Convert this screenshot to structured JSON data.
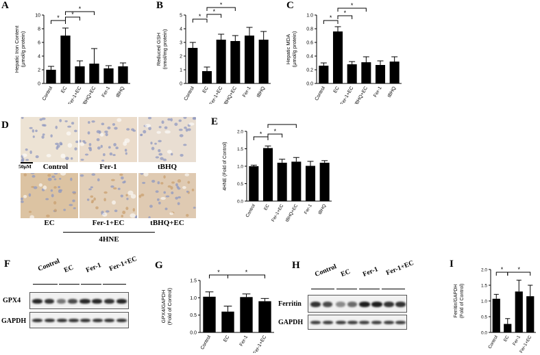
{
  "panels": {
    "A": "A",
    "B": "B",
    "C": "C",
    "D": "D",
    "E": "E",
    "F": "F",
    "G": "G",
    "H": "H",
    "I": "I"
  },
  "sig_marker": "*",
  "colors": {
    "bar": "#000000",
    "axis": "#000000",
    "tissue": "#e9dcc8",
    "nuclei": "#8f98c0",
    "stain": "#c9a070"
  },
  "chart_data": [
    {
      "id": "A",
      "type": "bar",
      "categories": [
        "Control",
        "EC",
        "Fer-1+EC",
        "tBHQ+EC",
        "Fer-1",
        "tBHQ"
      ],
      "values": [
        2.0,
        7.0,
        2.5,
        2.9,
        2.2,
        2.5
      ],
      "errors": [
        0.5,
        1.1,
        0.8,
        2.2,
        0.4,
        0.5
      ],
      "ylabel_lines": [
        "Hepatic Iron Content",
        "(μmol/g protein)"
      ],
      "yticks": [
        "0",
        "2",
        "4",
        "6",
        "8",
        "10"
      ],
      "ylim": [
        0,
        10
      ]
    },
    {
      "id": "B",
      "type": "bar",
      "categories": [
        "Control",
        "EC",
        "Fer-1+EC",
        "tBHQ+EC",
        "Fer-1",
        "tBHQ"
      ],
      "values": [
        2.6,
        0.9,
        3.2,
        3.1,
        3.5,
        3.2
      ],
      "errors": [
        0.4,
        0.3,
        0.4,
        0.4,
        0.6,
        0.6
      ],
      "ylabel_lines": [
        "Reduced GSH",
        "(nmol/mg protein)"
      ],
      "yticks": [
        "0",
        "1",
        "2",
        "3",
        "4",
        "5"
      ],
      "ylim": [
        0,
        5
      ]
    },
    {
      "id": "C",
      "type": "bar",
      "categories": [
        "Control",
        "EC",
        "Fer-1+EC",
        "tBHQ+EC",
        "Fer-1",
        "tBHQ"
      ],
      "values": [
        0.26,
        0.76,
        0.28,
        0.31,
        0.27,
        0.32
      ],
      "errors": [
        0.04,
        0.07,
        0.04,
        0.08,
        0.06,
        0.07
      ],
      "ylabel_lines": [
        "Hepatic MDA",
        "(μmol/g protein)"
      ],
      "yticks": [
        "0.0",
        "0.2",
        "0.4",
        "0.6",
        "0.8",
        "1.0"
      ],
      "ylim": [
        0,
        1.0
      ]
    },
    {
      "id": "E",
      "type": "bar",
      "categories": [
        "Control",
        "EC",
        "Fer-1+EC",
        "tBHQ+EC",
        "Fer-1",
        "tBHQ"
      ],
      "values": [
        1.0,
        1.52,
        1.1,
        1.13,
        1.01,
        1.1
      ],
      "errors": [
        0.03,
        0.06,
        0.1,
        0.12,
        0.13,
        0.06
      ],
      "ylabel_lines": [
        "4HNE (Fold of Control)"
      ],
      "yticks": [
        "0.0",
        "0.5",
        "1.0",
        "1.5",
        "2.0"
      ],
      "ylim": [
        0,
        2.0
      ]
    },
    {
      "id": "G",
      "type": "bar",
      "categories": [
        "Control",
        "EC",
        "Fer-1",
        "Fer-1+EC"
      ],
      "values": [
        1.03,
        0.6,
        1.02,
        0.9
      ],
      "errors": [
        0.14,
        0.16,
        0.09,
        0.08
      ],
      "ylabel_lines": [
        "GPX4/GAPDH",
        "(Fold of Control)"
      ],
      "yticks": [
        "0.0",
        "0.5",
        "1.0",
        "1.5"
      ],
      "ylim": [
        0,
        1.5
      ]
    },
    {
      "id": "I",
      "type": "bar",
      "categories": [
        "Control",
        "EC",
        "Fer-1",
        "Fer-1+EC"
      ],
      "values": [
        1.07,
        0.27,
        1.3,
        1.15
      ],
      "errors": [
        0.14,
        0.17,
        0.36,
        0.35
      ],
      "ylabel_lines": [
        "Ferritin/GAPDH",
        "(Fold of Control)"
      ],
      "yticks": [
        "0.0",
        "0.5",
        "1.0",
        "1.5",
        "2.0"
      ],
      "ylim": [
        0,
        2.0
      ]
    }
  ],
  "micrographs": {
    "scale_bar": "50μM",
    "top_labels": [
      "Control",
      "Fer-1",
      "tBHQ"
    ],
    "bottom_labels": [
      "EC",
      "Fer-1+EC",
      "tBHQ+EC"
    ],
    "stain": "4HNE"
  },
  "blot_F": {
    "lanes": [
      "Control",
      "EC",
      "Fer-1",
      "Fer-1+EC"
    ],
    "rows": [
      "GPX4",
      "GAPDH"
    ]
  },
  "blot_H": {
    "lanes": [
      "Control",
      "EC",
      "Fer-1",
      "Fer-1+EC"
    ],
    "rows": [
      "Ferritin",
      "GAPDH"
    ]
  }
}
